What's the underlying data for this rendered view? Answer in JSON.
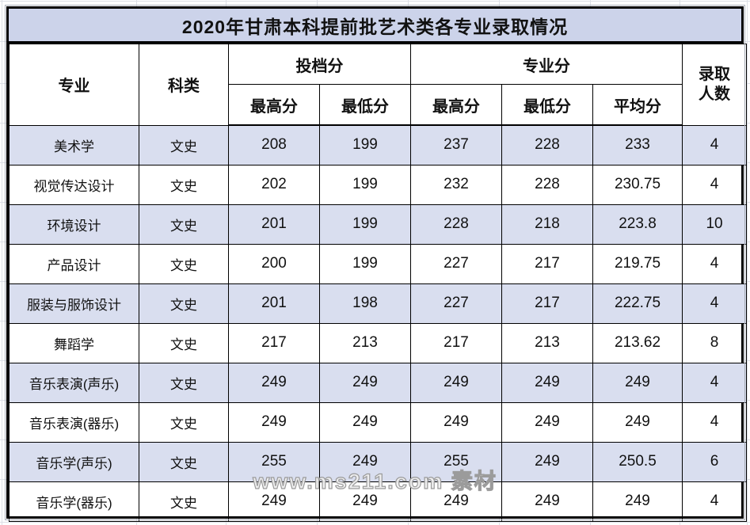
{
  "title": "2020年甘肃本科提前批艺术类各专业录取情况",
  "table": {
    "headers": {
      "major": "专业",
      "category": "科类",
      "file_score_group": "投档分",
      "major_score_group": "专业分",
      "file_max": "最高分",
      "file_min": "最低分",
      "major_max": "最高分",
      "major_min": "最低分",
      "major_avg": "平均分",
      "enrollment_line1": "录取",
      "enrollment_line2": "人数"
    },
    "rows": [
      {
        "major": "美术学",
        "category": "文史",
        "file_max": "208",
        "file_min": "199",
        "major_max": "237",
        "major_min": "228",
        "major_avg": "233",
        "count": "4"
      },
      {
        "major": "视觉传达设计",
        "category": "文史",
        "file_max": "202",
        "file_min": "199",
        "major_max": "232",
        "major_min": "228",
        "major_avg": "230.75",
        "count": "4"
      },
      {
        "major": "环境设计",
        "category": "文史",
        "file_max": "201",
        "file_min": "199",
        "major_max": "228",
        "major_min": "218",
        "major_avg": "223.8",
        "count": "10"
      },
      {
        "major": "产品设计",
        "category": "文史",
        "file_max": "200",
        "file_min": "199",
        "major_max": "227",
        "major_min": "217",
        "major_avg": "219.75",
        "count": "4"
      },
      {
        "major": "服装与服饰设计",
        "category": "文史",
        "file_max": "201",
        "file_min": "198",
        "major_max": "227",
        "major_min": "217",
        "major_avg": "222.75",
        "count": "4"
      },
      {
        "major": "舞蹈学",
        "category": "文史",
        "file_max": "217",
        "file_min": "213",
        "major_max": "217",
        "major_min": "213",
        "major_avg": "213.62",
        "count": "8"
      },
      {
        "major": "音乐表演(声乐)",
        "category": "文史",
        "file_max": "249",
        "file_min": "249",
        "major_max": "249",
        "major_min": "249",
        "major_avg": "249",
        "count": "4"
      },
      {
        "major": "音乐表演(器乐)",
        "category": "文史",
        "file_max": "249",
        "file_min": "249",
        "major_max": "249",
        "major_min": "249",
        "major_avg": "249",
        "count": "4"
      },
      {
        "major": "音乐学(声乐)",
        "category": "文史",
        "file_max": "255",
        "file_min": "249",
        "major_max": "255",
        "major_min": "249",
        "major_avg": "250.5",
        "count": "6"
      },
      {
        "major": "音乐学(器乐)",
        "category": "文史",
        "file_max": "249",
        "file_min": "249",
        "major_max": "249",
        "major_min": "249",
        "major_avg": "249",
        "count": "4"
      }
    ]
  },
  "watermark": "www.ms211.com 素材",
  "colors": {
    "title_bg": "#ccd3ea",
    "row_alt_bg": "#d9deef",
    "border": "#000000",
    "watermark_stroke": "#9b9b9b"
  }
}
